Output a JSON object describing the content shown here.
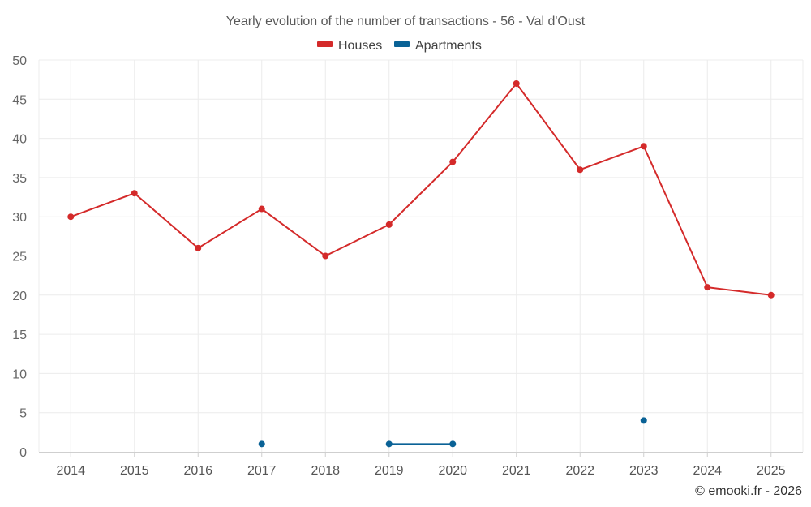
{
  "chart_data": {
    "type": "line",
    "title": "Yearly evolution of the number of transactions - 56 - Val d'Oust",
    "categories": [
      "2014",
      "2015",
      "2016",
      "2017",
      "2018",
      "2019",
      "2020",
      "2021",
      "2022",
      "2023",
      "2024",
      "2025"
    ],
    "ylim": [
      0,
      50
    ],
    "yticks": [
      "0",
      "5",
      "10",
      "15",
      "20",
      "25",
      "30",
      "35",
      "40",
      "45",
      "50"
    ],
    "grid": true,
    "legend_position": "top-center",
    "series": [
      {
        "name": "Houses",
        "color": "#d42a2a",
        "values": [
          30,
          33,
          26,
          31,
          25,
          29,
          37,
          47,
          36,
          39,
          21,
          20
        ]
      },
      {
        "name": "Apartments",
        "color": "#0a6296",
        "values": [
          null,
          null,
          null,
          1,
          null,
          1,
          1,
          null,
          null,
          4,
          null,
          null
        ]
      }
    ],
    "credit": "© emooki.fr - 2026"
  }
}
